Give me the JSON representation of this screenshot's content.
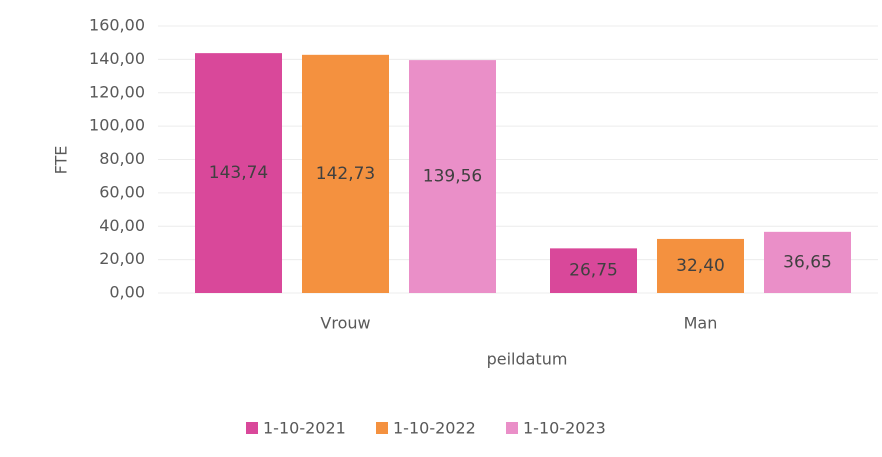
{
  "chart_data": {
    "type": "bar",
    "categories": [
      "Vrouw",
      "Man"
    ],
    "series": [
      {
        "name": "1-10-2021",
        "color": "#d9489a",
        "values": [
          143.74,
          26.75
        ],
        "value_labels": [
          "143,74",
          "26,75"
        ]
      },
      {
        "name": "1-10-2022",
        "color": "#f4913f",
        "values": [
          142.73,
          32.4
        ],
        "value_labels": [
          "142,73",
          "32,40"
        ]
      },
      {
        "name": "1-10-2023",
        "color": "#ea8fc8",
        "values": [
          139.56,
          36.65
        ],
        "value_labels": [
          "139,56",
          "36,65"
        ]
      }
    ],
    "xlabel": "peildatum",
    "ylabel": "FTE",
    "ylim": [
      0,
      160
    ],
    "yticks": [
      {
        "value": 0,
        "label": "0,00"
      },
      {
        "value": 20,
        "label": "20,00"
      },
      {
        "value": 40,
        "label": "40,00"
      },
      {
        "value": 60,
        "label": "60,00"
      },
      {
        "value": 80,
        "label": "80,00"
      },
      {
        "value": 100,
        "label": "100,00"
      },
      {
        "value": 120,
        "label": "120,00"
      },
      {
        "value": 140,
        "label": "140,00"
      },
      {
        "value": 160,
        "label": "160,00"
      }
    ],
    "grid": true,
    "legend": "bottom"
  }
}
